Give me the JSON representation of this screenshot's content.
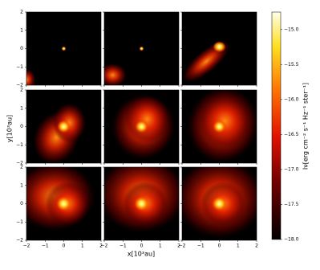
{
  "chart_data": {
    "type": "image-grid",
    "xlabel": "x[10³au]",
    "ylabel": "y[10³au]",
    "xlim": [
      -2,
      2
    ],
    "ylim": [
      -2,
      2
    ],
    "xticks": [
      {
        "value": -2,
        "label": "−2"
      },
      {
        "value": -1,
        "label": "−1"
      },
      0,
      1,
      2
    ],
    "yticks": [
      {
        "value": -2,
        "label": "−2"
      },
      {
        "value": -1,
        "label": "−1"
      },
      0,
      1,
      2
    ],
    "colorbar": {
      "label": "Iν[erg cm⁻² s⁻¹ Hz⁻¹ ster⁻¹]",
      "lim": [
        -18.0,
        -14.75
      ],
      "ticks": [
        {
          "value": -15.0,
          "label": "−15.0"
        },
        {
          "value": -15.5,
          "label": "−15.5"
        },
        {
          "value": -16.0,
          "label": "−16.0"
        },
        {
          "value": -16.5,
          "label": "−16.5"
        },
        {
          "value": -17.0,
          "label": "−17.0"
        },
        {
          "value": -17.5,
          "label": "−17.5"
        },
        {
          "value": -18.0,
          "label": "−18.0"
        }
      ]
    }
  }
}
